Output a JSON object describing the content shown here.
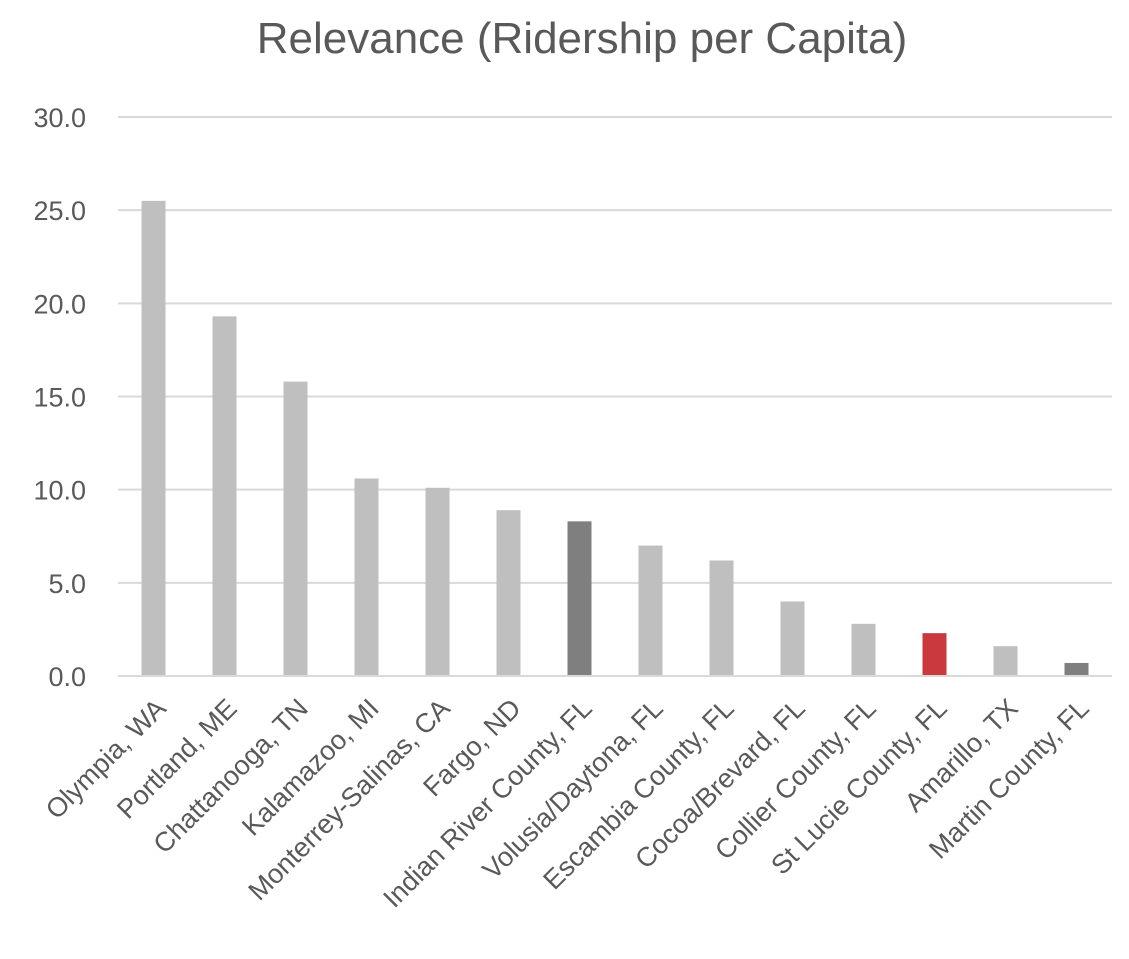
{
  "chart_data": {
    "type": "bar",
    "title": "Relevance (Ridership per Capita)",
    "xlabel": "",
    "ylabel": "",
    "ylim": [
      0,
      30
    ],
    "ytick_step": 5,
    "ytick_labels": [
      "0.0",
      "5.0",
      "10.0",
      "15.0",
      "20.0",
      "25.0",
      "30.0"
    ],
    "grid": true,
    "legend": "none",
    "categories": [
      "Olympia, WA",
      "Portland, ME",
      "Chattanooga, TN",
      "Kalamazoo, MI",
      "Monterrey-Salinas, CA",
      "Fargo, ND",
      "Indian River County, FL",
      "Volusia/Daytona, FL",
      "Escambia County, FL",
      "Cocoa/Brevard, FL",
      "Collier County, FL",
      "St Lucie County, FL",
      "Amarillo, TX",
      "Martin County, FL"
    ],
    "values": [
      25.5,
      19.3,
      15.8,
      10.6,
      10.1,
      8.9,
      8.3,
      7.0,
      6.2,
      4.0,
      2.8,
      2.3,
      1.6,
      0.7
    ],
    "bar_colors": [
      "#bfbfbf",
      "#bfbfbf",
      "#bfbfbf",
      "#bfbfbf",
      "#bfbfbf",
      "#bfbfbf",
      "#7f7f7f",
      "#bfbfbf",
      "#bfbfbf",
      "#bfbfbf",
      "#bfbfbf",
      "#c9393d",
      "#bfbfbf",
      "#7f7f7f"
    ]
  }
}
